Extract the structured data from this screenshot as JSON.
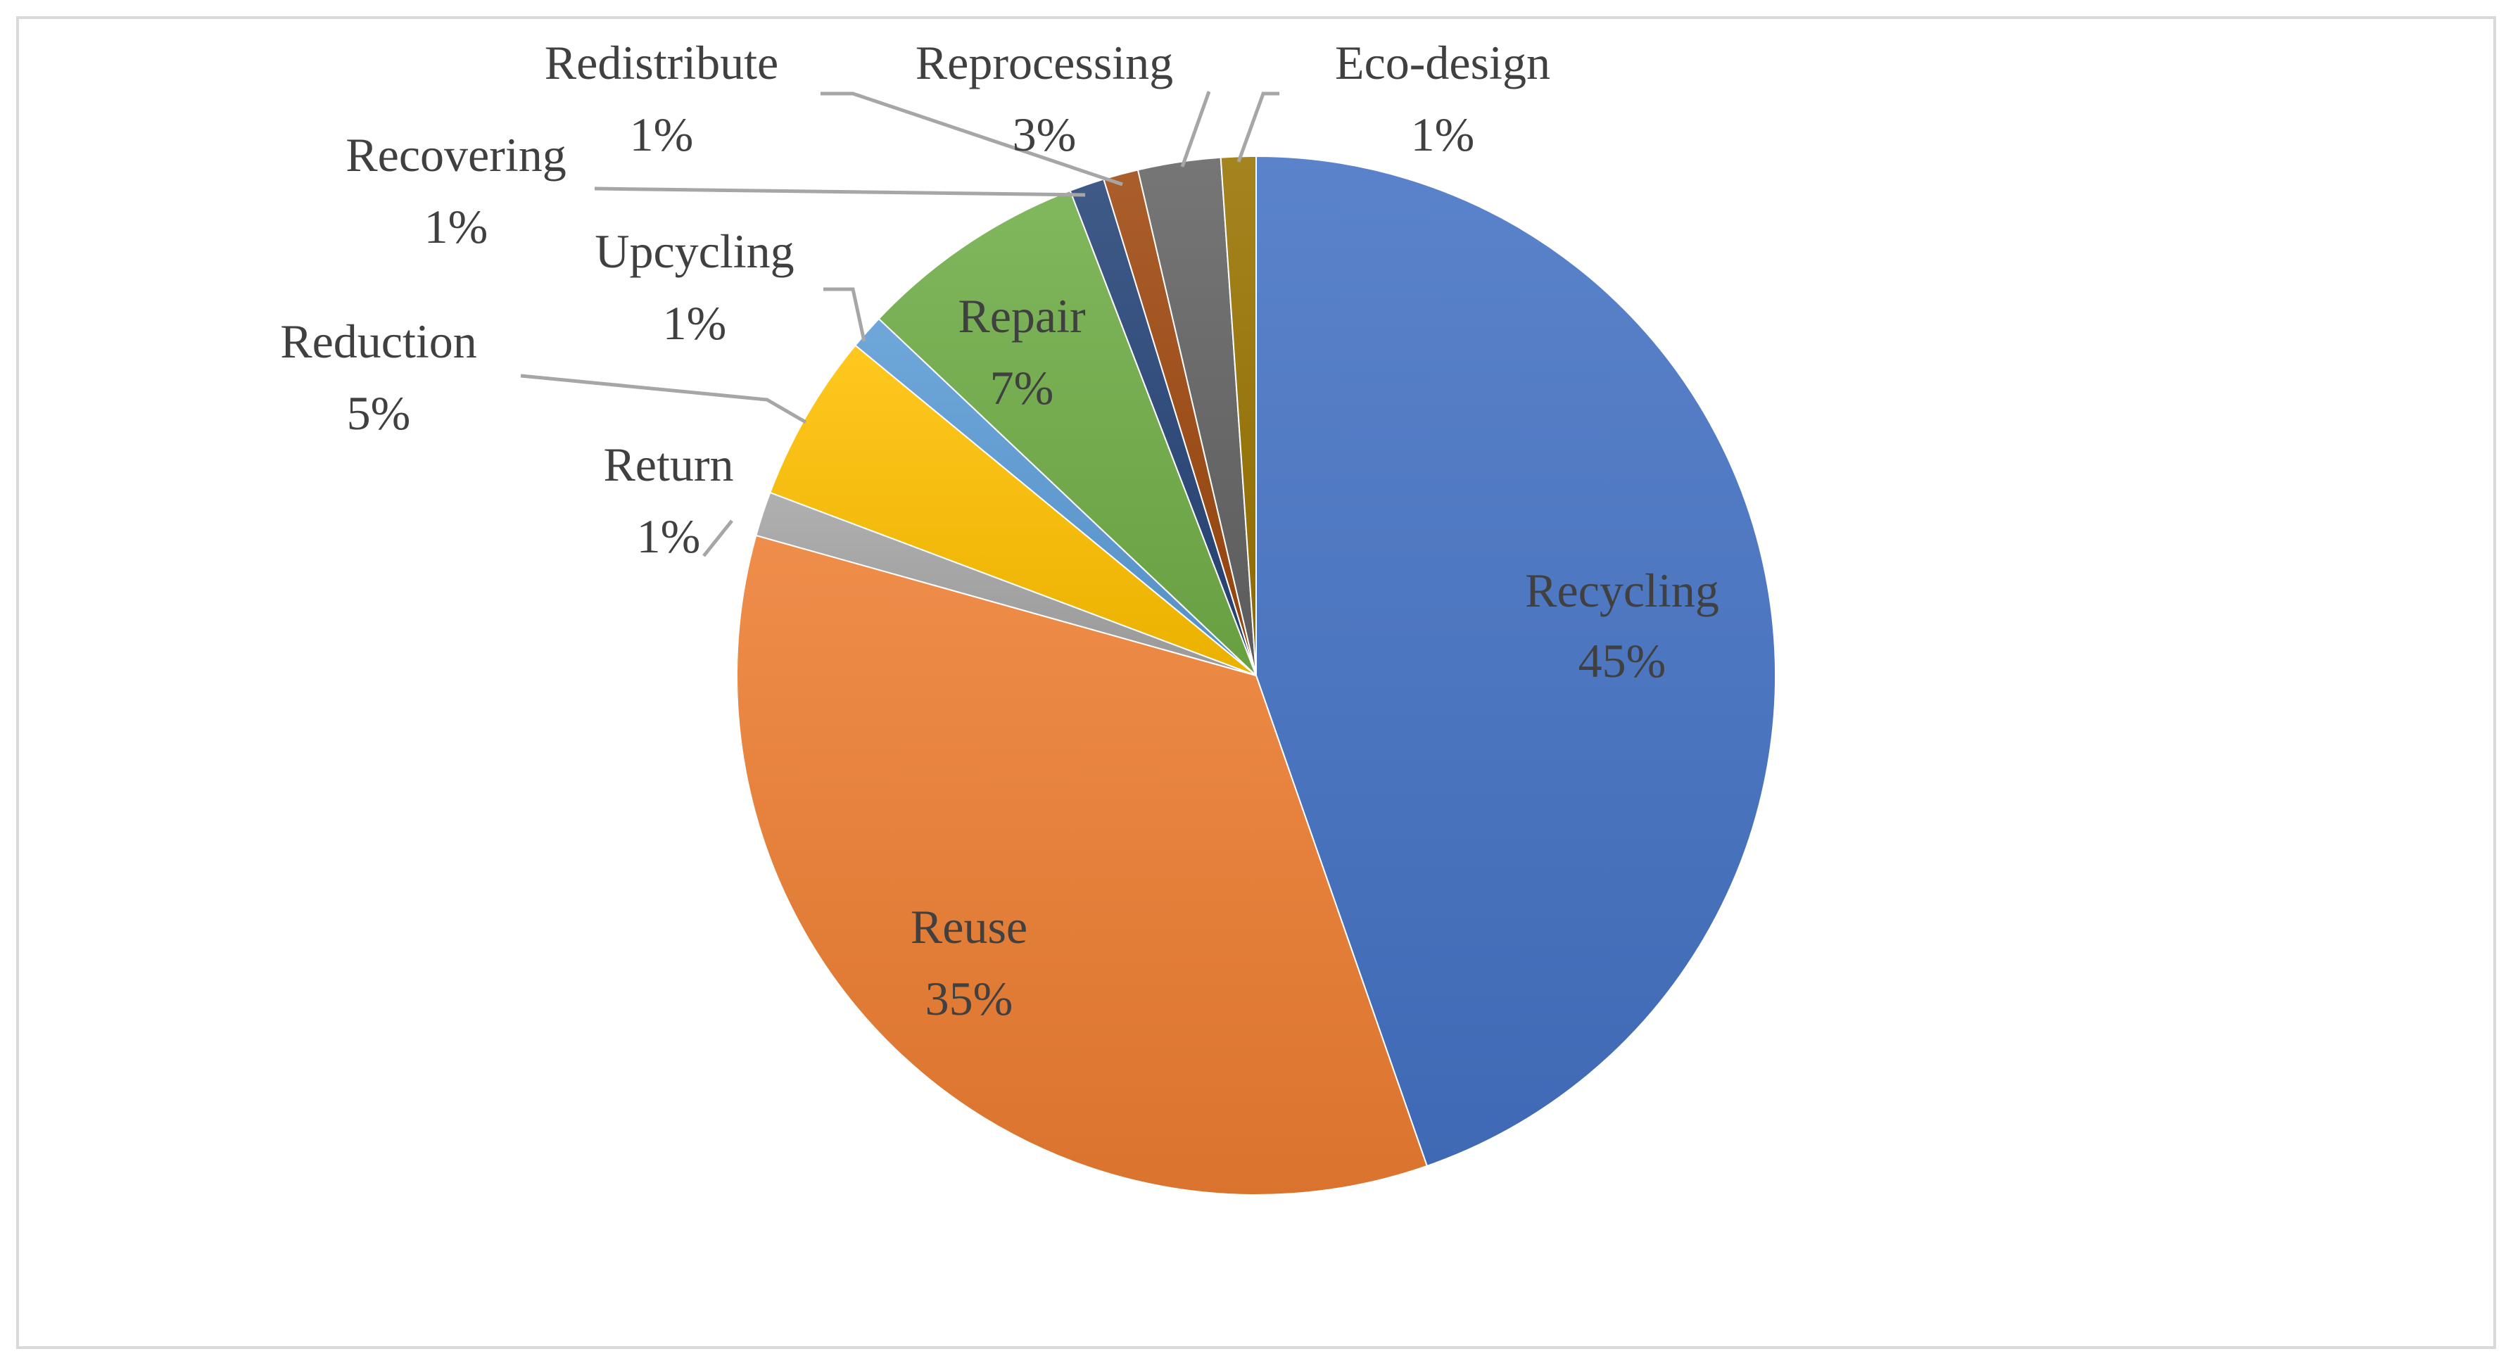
{
  "chart_data": {
    "type": "pie",
    "title": "",
    "start_angle_deg": 0,
    "direction": "clockwise",
    "slices": [
      {
        "label": "Recycling",
        "value_label": "45%",
        "value": 45.2,
        "color": "#4472C4",
        "label_pos": "inside"
      },
      {
        "label": "Reuse",
        "value_label": "35%",
        "value": 35.1,
        "color": "#ED7D31",
        "label_pos": "inside"
      },
      {
        "label": "Return",
        "value_label": "1%",
        "value": 1.4,
        "color": "#A5A5A5",
        "label_pos": "outside"
      },
      {
        "label": "Reduction",
        "value_label": "5%",
        "value": 5.3,
        "color": "#FFC000",
        "label_pos": "outside"
      },
      {
        "label": "Upcycling",
        "value_label": "1%",
        "value": 1.1,
        "color": "#5B9BD5",
        "label_pos": "outside"
      },
      {
        "label": "Repair",
        "value_label": "7%",
        "value": 7.2,
        "color": "#70AD47",
        "label_pos": "inside"
      },
      {
        "label": "Recovering",
        "value_label": "1%",
        "value": 1.1,
        "color": "#264478",
        "label_pos": "outside"
      },
      {
        "label": "Redistribute",
        "value_label": "1%",
        "value": 1.1,
        "color": "#9E480E",
        "label_pos": "outside"
      },
      {
        "label": "Reprocessing",
        "value_label": "3%",
        "value": 2.6,
        "color": "#636363",
        "label_pos": "outside"
      },
      {
        "label": "Eco-design",
        "value_label": "1%",
        "value": 1.1,
        "color": "#997300",
        "label_pos": "outside"
      }
    ],
    "legend": "none",
    "data_labels": "category-and-percent"
  }
}
